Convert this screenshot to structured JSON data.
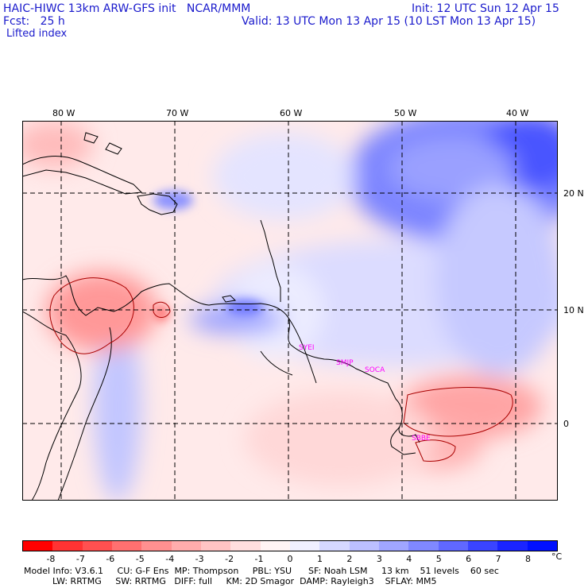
{
  "header": {
    "model_line": "HAIC-HIWC 13km ARW-GFS init   NCAR/MMM",
    "fcst_line": "Fcst:   25 h",
    "field": "Lifted index",
    "init_line": "Init: 12 UTC Sun 12 Apr 15",
    "valid_line": "Valid: 13 UTC Mon 13 Apr 15 (10 LST Mon 13 Apr 15)"
  },
  "map": {
    "longitude_labels": [
      "80 W",
      "70 W",
      "60 W",
      "50 W",
      "40 W"
    ],
    "latitude_labels": [
      "20 N",
      "10 N",
      "0"
    ],
    "stations": [
      "SYEI",
      "SMJP",
      "SOCA",
      "SBBE"
    ]
  },
  "colorbar": {
    "ticks": [
      "-8",
      "-7",
      "-6",
      "-5",
      "-4",
      "-3",
      "-2",
      "-1",
      "0",
      "1",
      "2",
      "3",
      "4",
      "5",
      "6",
      "7",
      "8"
    ],
    "unit": "°C",
    "colors": [
      "#ff0000",
      "#ff3333",
      "#ff5050",
      "#ff7070",
      "#ff9090",
      "#ffacac",
      "#ffc4c4",
      "#ffdede",
      "#fff4f4",
      "#f0f0ff",
      "#d6d8ff",
      "#bcc0ff",
      "#a0a6ff",
      "#8088ff",
      "#6068ff",
      "#3a44ff",
      "#1a24ff",
      "#0010ff"
    ]
  },
  "footer": {
    "line1": "Model Info: V3.6.1     CU: G-F Ens  MP: Thompson     PBL: YSU      SF: Noah LSM     13 km    51 levels    60 sec",
    "line2": "LW: RRTMG     SW: RRTMG   DIFF: full     KM: 2D Smagor  DAMP: Rayleigh3    SFLAY: MM5"
  }
}
